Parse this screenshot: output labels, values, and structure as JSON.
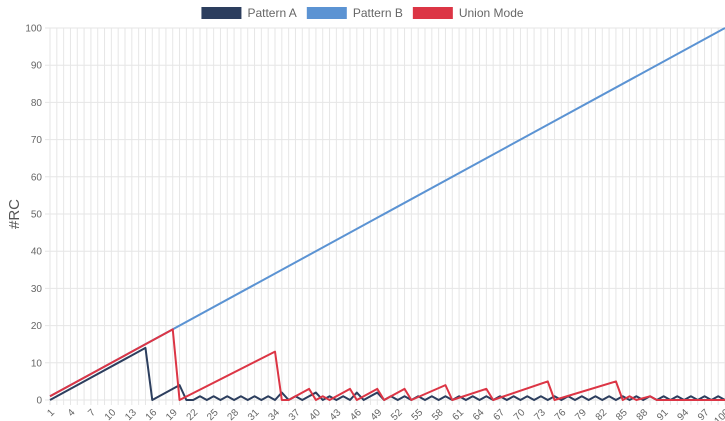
{
  "chart_data": {
    "type": "line",
    "ylabel": "#RC",
    "xlabel": "",
    "title": "",
    "ylim": [
      0,
      100
    ],
    "y_ticks": [
      0,
      10,
      20,
      30,
      40,
      50,
      60,
      70,
      80,
      90,
      100
    ],
    "x_min": 1,
    "x_max": 100,
    "x_tick_labels": [
      "1",
      "4",
      "7",
      "10",
      "13",
      "16",
      "19",
      "22",
      "25",
      "28",
      "31",
      "34",
      "37",
      "40",
      "43",
      "46",
      "49",
      "52",
      "55",
      "58",
      "61",
      "64",
      "67",
      "70",
      "73",
      "76",
      "79",
      "82",
      "85",
      "88",
      "91",
      "94",
      "97",
      "100"
    ],
    "legend_position": "top-center",
    "grid": true,
    "series": [
      {
        "name": "Pattern A",
        "color": "#2c3e5e",
        "points": [
          [
            1,
            0
          ],
          [
            15,
            14
          ],
          [
            16,
            0
          ],
          [
            20,
            4
          ],
          [
            21,
            0
          ],
          [
            22,
            0
          ],
          [
            23,
            1
          ],
          [
            24,
            0
          ],
          [
            25,
            1
          ],
          [
            26,
            0
          ],
          [
            27,
            1
          ],
          [
            28,
            0
          ],
          [
            29,
            1
          ],
          [
            30,
            0
          ],
          [
            31,
            1
          ],
          [
            32,
            0
          ],
          [
            33,
            1
          ],
          [
            34,
            0
          ],
          [
            35,
            2
          ],
          [
            36,
            0
          ],
          [
            37,
            1
          ],
          [
            38,
            0
          ],
          [
            39,
            1
          ],
          [
            40,
            2
          ],
          [
            41,
            0
          ],
          [
            42,
            1
          ],
          [
            43,
            0
          ],
          [
            44,
            1
          ],
          [
            45,
            0
          ],
          [
            46,
            2
          ],
          [
            47,
            0
          ],
          [
            48,
            1
          ],
          [
            49,
            2
          ],
          [
            50,
            0
          ],
          [
            51,
            1
          ],
          [
            52,
            0
          ],
          [
            53,
            1
          ],
          [
            54,
            0
          ],
          [
            55,
            1
          ],
          [
            56,
            0
          ],
          [
            57,
            1
          ],
          [
            58,
            0
          ],
          [
            59,
            1
          ],
          [
            60,
            0
          ],
          [
            61,
            1
          ],
          [
            62,
            0
          ],
          [
            63,
            1
          ],
          [
            64,
            0
          ],
          [
            65,
            1
          ],
          [
            66,
            0
          ],
          [
            67,
            1
          ],
          [
            68,
            0
          ],
          [
            69,
            1
          ],
          [
            70,
            0
          ],
          [
            71,
            1
          ],
          [
            72,
            0
          ],
          [
            73,
            1
          ],
          [
            74,
            0
          ],
          [
            75,
            1
          ],
          [
            76,
            0
          ],
          [
            77,
            1
          ],
          [
            78,
            0
          ],
          [
            79,
            1
          ],
          [
            80,
            0
          ],
          [
            81,
            1
          ],
          [
            82,
            0
          ],
          [
            83,
            1
          ],
          [
            84,
            0
          ],
          [
            85,
            1
          ],
          [
            86,
            0
          ],
          [
            87,
            1
          ],
          [
            88,
            0
          ],
          [
            89,
            1
          ],
          [
            90,
            0
          ],
          [
            91,
            1
          ],
          [
            92,
            0
          ],
          [
            93,
            1
          ],
          [
            94,
            0
          ],
          [
            95,
            1
          ],
          [
            96,
            0
          ],
          [
            97,
            1
          ],
          [
            98,
            0
          ],
          [
            99,
            1
          ],
          [
            100,
            0
          ]
        ]
      },
      {
        "name": "Pattern B",
        "color": "#5b93d3",
        "points": [
          [
            1,
            1
          ],
          [
            100,
            100
          ]
        ]
      },
      {
        "name": "Union Mode",
        "color": "#dc3545",
        "points": [
          [
            1,
            1
          ],
          [
            19,
            19
          ],
          [
            20,
            0
          ],
          [
            34,
            13
          ],
          [
            35,
            0
          ],
          [
            36,
            0
          ],
          [
            39,
            3
          ],
          [
            40,
            0
          ],
          [
            41,
            1
          ],
          [
            42,
            0
          ],
          [
            45,
            3
          ],
          [
            46,
            0
          ],
          [
            49,
            3
          ],
          [
            50,
            0
          ],
          [
            53,
            3
          ],
          [
            54,
            0
          ],
          [
            59,
            4
          ],
          [
            60,
            0
          ],
          [
            65,
            3
          ],
          [
            66,
            0
          ],
          [
            74,
            5
          ],
          [
            75,
            0
          ],
          [
            84,
            5
          ],
          [
            85,
            0
          ],
          [
            86,
            1
          ],
          [
            87,
            0
          ],
          [
            89,
            1
          ],
          [
            90,
            0
          ],
          [
            100,
            0
          ]
        ]
      }
    ]
  }
}
